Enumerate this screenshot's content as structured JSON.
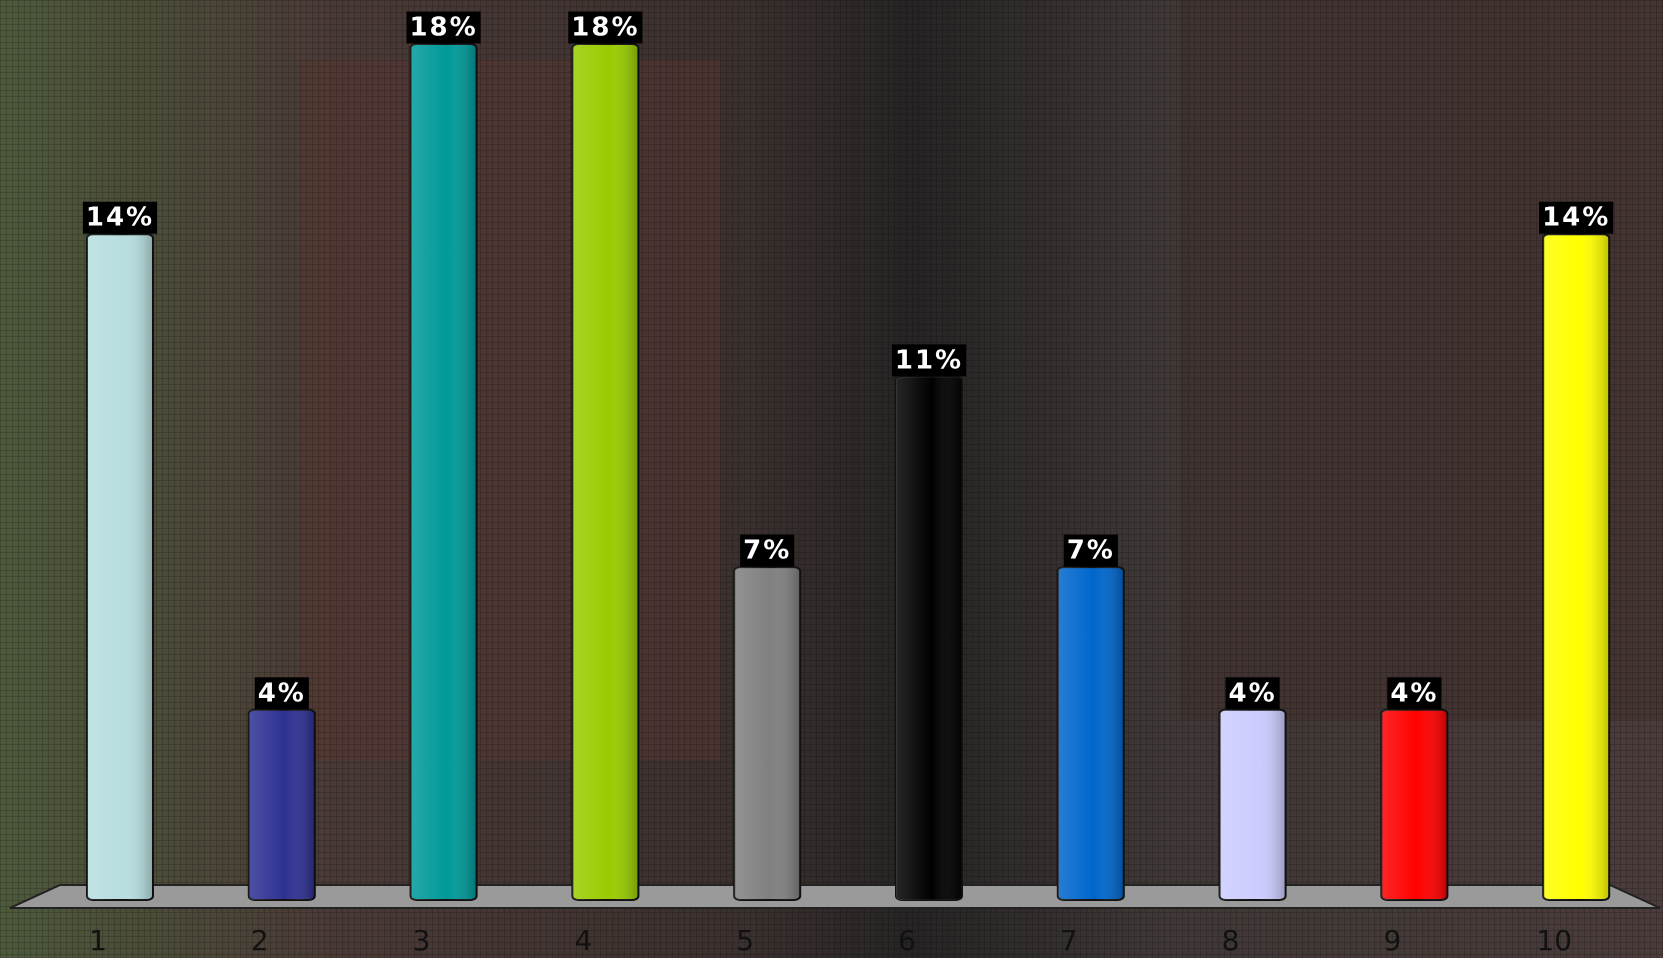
{
  "chart_data": {
    "type": "bar",
    "categories": [
      "1",
      "2",
      "3",
      "4",
      "5",
      "6",
      "7",
      "8",
      "9",
      "10"
    ],
    "values": [
      14,
      4,
      18,
      18,
      7,
      11,
      7,
      4,
      4,
      14
    ],
    "value_labels": [
      "14%",
      "4%",
      "18%",
      "18%",
      "7%",
      "11%",
      "7%",
      "4%",
      "4%",
      "14%"
    ],
    "colors": [
      "#b7dedf",
      "#2e3192",
      "#009999",
      "#99cc00",
      "#808080",
      "#000000",
      "#0066cc",
      "#ccccff",
      "#ff0000",
      "#ffff00"
    ]
  }
}
